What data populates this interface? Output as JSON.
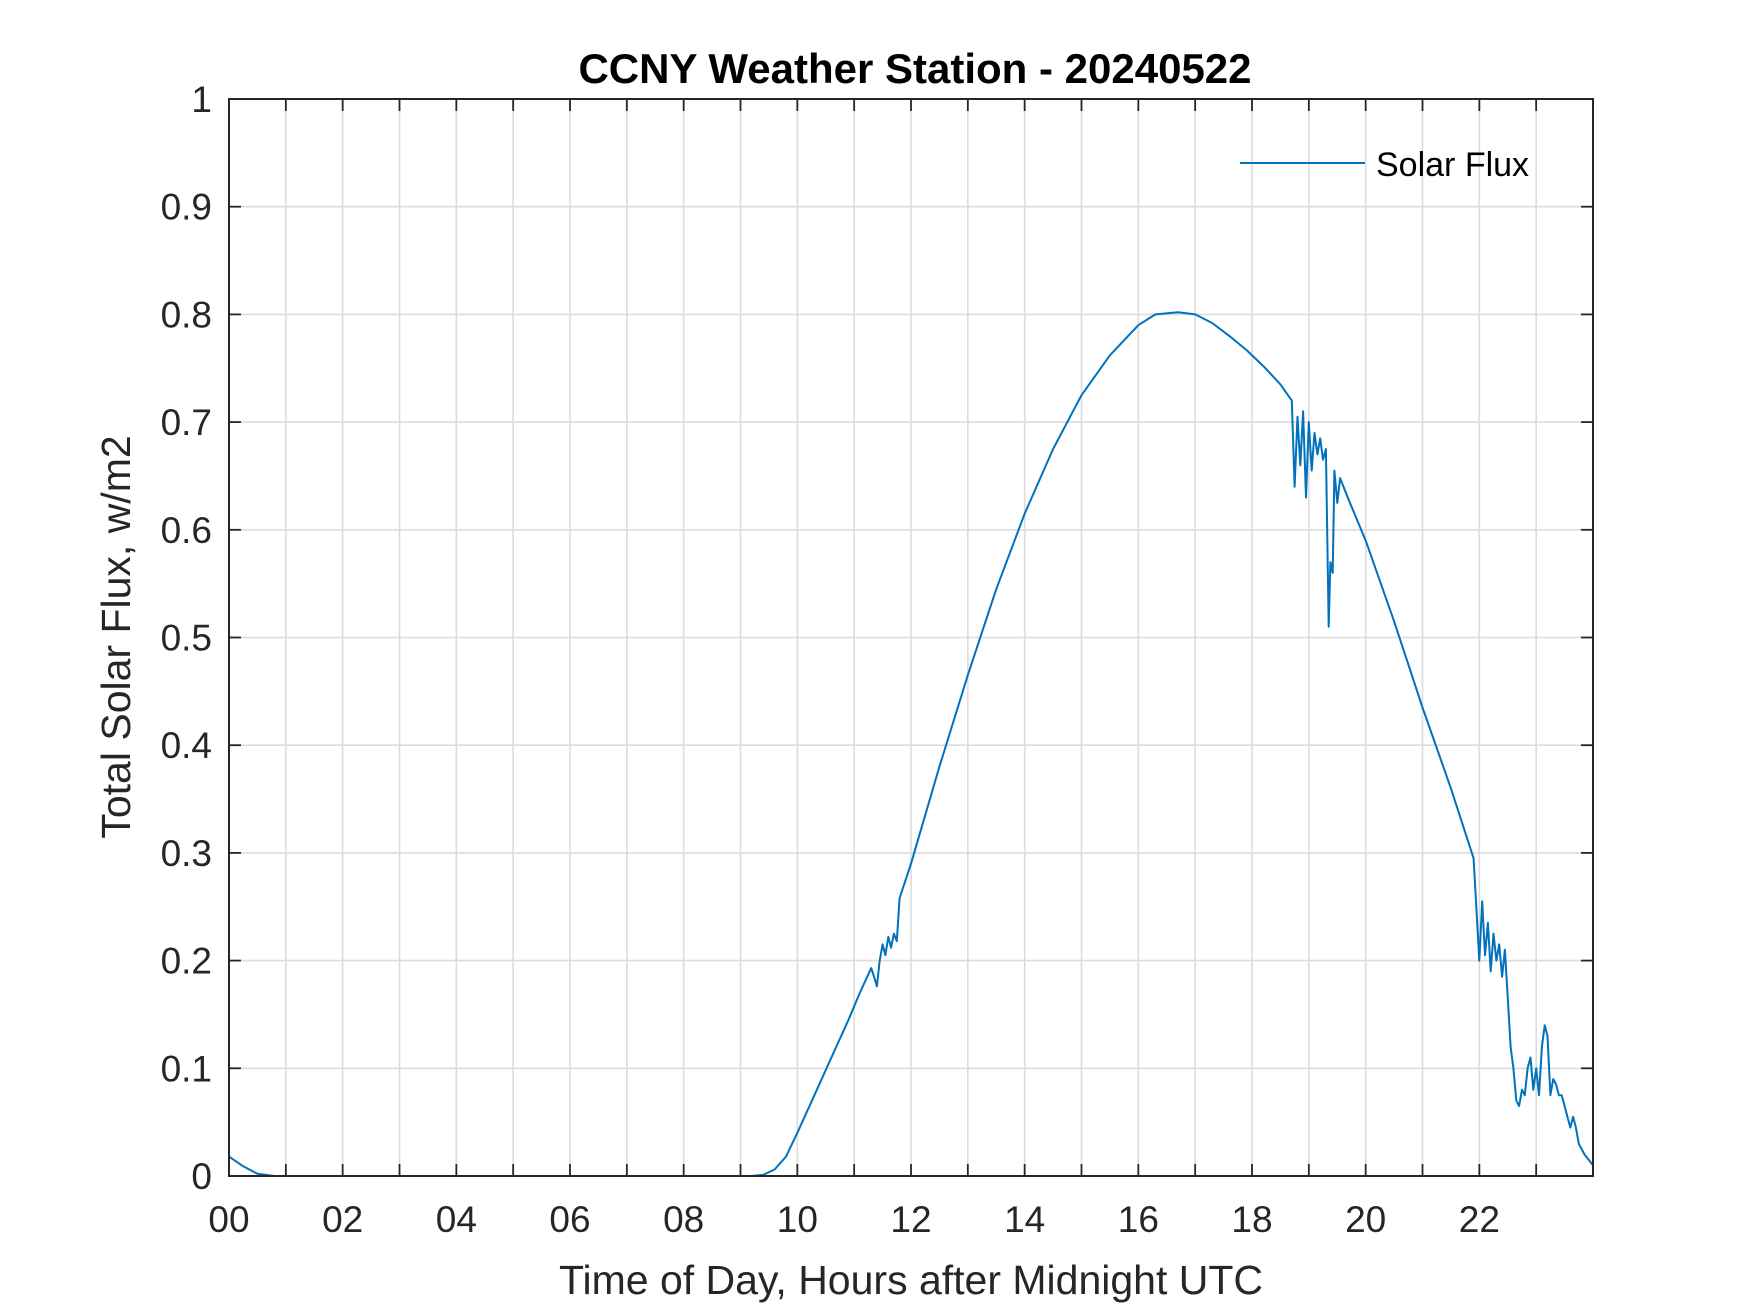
{
  "chart_data": {
    "type": "line",
    "title": "CCNY Weather Station - 20240522",
    "xlabel": "Time of Day, Hours after Midnight UTC",
    "ylabel": "Total Solar Flux, w/m2",
    "xlim": [
      0,
      24
    ],
    "ylim": [
      0,
      1
    ],
    "xticks": [
      0,
      2,
      4,
      6,
      8,
      10,
      12,
      14,
      16,
      18,
      20,
      22
    ],
    "xtick_labels": [
      "00",
      "02",
      "04",
      "06",
      "08",
      "10",
      "12",
      "14",
      "16",
      "18",
      "20",
      "22"
    ],
    "yticks": [
      0,
      0.1,
      0.2,
      0.3,
      0.4,
      0.5,
      0.6,
      0.7,
      0.8,
      0.9,
      1
    ],
    "ytick_labels": [
      "0",
      "0.1",
      "0.2",
      "0.3",
      "0.4",
      "0.5",
      "0.6",
      "0.7",
      "0.8",
      "0.9",
      "1"
    ],
    "grid": true,
    "legend": {
      "position": "top-right",
      "entries": [
        "Solar Flux"
      ]
    },
    "series": [
      {
        "name": "Solar Flux",
        "color": "#0072BD",
        "points": [
          [
            0,
            0.018
          ],
          [
            0.25,
            0.009
          ],
          [
            0.5,
            0.002
          ],
          [
            0.8,
            0.0
          ],
          [
            3,
            0.0
          ],
          [
            6,
            0.0
          ],
          [
            8,
            0.0
          ],
          [
            9.2,
            0.0
          ],
          [
            9.4,
            0.001
          ],
          [
            9.6,
            0.006
          ],
          [
            9.8,
            0.018
          ],
          [
            10,
            0.04
          ],
          [
            10.3,
            0.075
          ],
          [
            10.6,
            0.11
          ],
          [
            10.9,
            0.145
          ],
          [
            11.1,
            0.17
          ],
          [
            11.3,
            0.193
          ],
          [
            11.35,
            0.185
          ],
          [
            11.4,
            0.176
          ],
          [
            11.45,
            0.2
          ],
          [
            11.5,
            0.215
          ],
          [
            11.55,
            0.205
          ],
          [
            11.6,
            0.222
          ],
          [
            11.65,
            0.212
          ],
          [
            11.7,
            0.225
          ],
          [
            11.75,
            0.218
          ],
          [
            11.8,
            0.258
          ],
          [
            12,
            0.29
          ],
          [
            12.5,
            0.38
          ],
          [
            13,
            0.465
          ],
          [
            13.5,
            0.545
          ],
          [
            14,
            0.615
          ],
          [
            14.5,
            0.675
          ],
          [
            15,
            0.725
          ],
          [
            15.5,
            0.762
          ],
          [
            16,
            0.79
          ],
          [
            16.3,
            0.8
          ],
          [
            16.7,
            0.802
          ],
          [
            17,
            0.8
          ],
          [
            17.3,
            0.792
          ],
          [
            17.6,
            0.78
          ],
          [
            17.9,
            0.767
          ],
          [
            18.2,
            0.752
          ],
          [
            18.5,
            0.735
          ],
          [
            18.7,
            0.72
          ],
          [
            18.75,
            0.64
          ],
          [
            18.8,
            0.705
          ],
          [
            18.85,
            0.66
          ],
          [
            18.9,
            0.71
          ],
          [
            18.95,
            0.63
          ],
          [
            19.0,
            0.7
          ],
          [
            19.05,
            0.655
          ],
          [
            19.1,
            0.69
          ],
          [
            19.15,
            0.67
          ],
          [
            19.2,
            0.685
          ],
          [
            19.25,
            0.665
          ],
          [
            19.3,
            0.675
          ],
          [
            19.35,
            0.51
          ],
          [
            19.38,
            0.57
          ],
          [
            19.42,
            0.56
          ],
          [
            19.45,
            0.655
          ],
          [
            19.5,
            0.625
          ],
          [
            19.55,
            0.648
          ],
          [
            19.7,
            0.628
          ],
          [
            20,
            0.59
          ],
          [
            20.5,
            0.515
          ],
          [
            21,
            0.435
          ],
          [
            21.5,
            0.36
          ],
          [
            21.9,
            0.295
          ],
          [
            22.0,
            0.2
          ],
          [
            22.05,
            0.255
          ],
          [
            22.1,
            0.205
          ],
          [
            22.15,
            0.235
          ],
          [
            22.2,
            0.19
          ],
          [
            22.25,
            0.225
          ],
          [
            22.3,
            0.2
          ],
          [
            22.35,
            0.215
          ],
          [
            22.4,
            0.185
          ],
          [
            22.45,
            0.21
          ],
          [
            22.5,
            0.165
          ],
          [
            22.55,
            0.12
          ],
          [
            22.6,
            0.1
          ],
          [
            22.65,
            0.07
          ],
          [
            22.7,
            0.065
          ],
          [
            22.75,
            0.08
          ],
          [
            22.8,
            0.075
          ],
          [
            22.85,
            0.1
          ],
          [
            22.9,
            0.11
          ],
          [
            22.95,
            0.08
          ],
          [
            23.0,
            0.1
          ],
          [
            23.05,
            0.075
          ],
          [
            23.1,
            0.12
          ],
          [
            23.15,
            0.14
          ],
          [
            23.2,
            0.13
          ],
          [
            23.25,
            0.075
          ],
          [
            23.3,
            0.09
          ],
          [
            23.35,
            0.085
          ],
          [
            23.4,
            0.075
          ],
          [
            23.45,
            0.075
          ],
          [
            23.5,
            0.065
          ],
          [
            23.55,
            0.055
          ],
          [
            23.6,
            0.045
          ],
          [
            23.65,
            0.055
          ],
          [
            23.7,
            0.045
          ],
          [
            23.75,
            0.03
          ],
          [
            23.85,
            0.02
          ],
          [
            24,
            0.01
          ]
        ]
      }
    ]
  }
}
